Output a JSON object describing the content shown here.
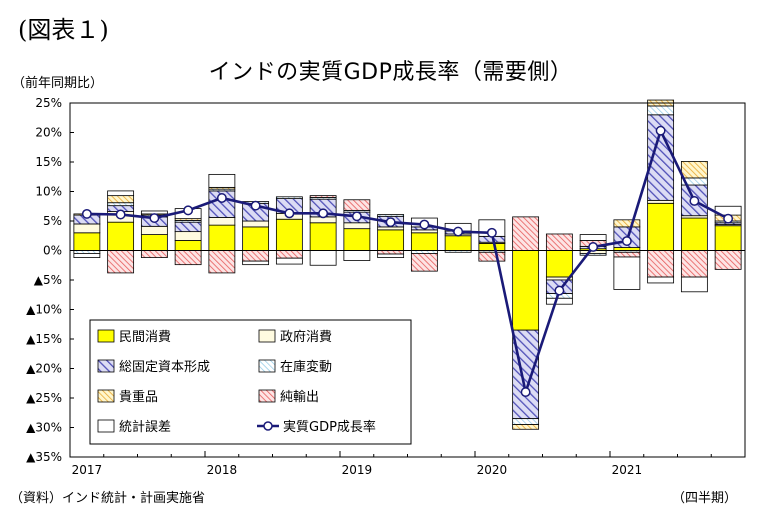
{
  "figure_label": "(図表１)",
  "source": "（資料）インド統計・計画実施省",
  "chart_data": {
    "type": "bar",
    "stacked": true,
    "title": "インドの実質GDP成長率（需要側）",
    "ylabel": "（前年同期比）",
    "xlabel": "（四半期）",
    "ylim": [
      -35,
      25
    ],
    "yticks": [
      25,
      20,
      15,
      10,
      5,
      0,
      -5,
      -10,
      -15,
      -20,
      -25,
      -30,
      -35
    ],
    "ytick_labels": [
      "25%",
      "20%",
      "15%",
      "10%",
      "5%",
      "0%",
      "▲5%",
      "▲10%",
      "▲15%",
      "▲20%",
      "▲25%",
      "▲30%",
      "▲35%"
    ],
    "year_labels": [
      "2017",
      "2018",
      "2019",
      "2020",
      "2021"
    ],
    "year_label_index": [
      0,
      4,
      8,
      12,
      16
    ],
    "quarters": [
      "2017Q1",
      "2017Q2",
      "2017Q3",
      "2017Q4",
      "2018Q1",
      "2018Q2",
      "2018Q3",
      "2018Q4",
      "2019Q1",
      "2019Q2",
      "2019Q3",
      "2019Q4",
      "2020Q1",
      "2020Q2",
      "2020Q3",
      "2020Q4",
      "2021Q1",
      "2021Q2",
      "2021Q3",
      "2021Q4"
    ],
    "grid": false,
    "legend_position": "bottom-left",
    "series": [
      {
        "name": "民間消費",
        "key": "private",
        "values": [
          3,
          4.8,
          2.7,
          1.7,
          4.3,
          4,
          5.3,
          4.7,
          3.7,
          3.5,
          3,
          2.5,
          1.2,
          -13.5,
          -4.5,
          0.3,
          0.5,
          8,
          5.5,
          4.2
        ]
      },
      {
        "name": "政府消費",
        "key": "government",
        "values": [
          1.5,
          1.8,
          1.4,
          1.5,
          1.3,
          1,
          1,
          1,
          1,
          0.5,
          0.5,
          0.3,
          0.2,
          0,
          -0.5,
          -0.5,
          0,
          0.5,
          0.4,
          0.2
        ]
      },
      {
        "name": "総固定資本形成",
        "key": "gfcf",
        "values": [
          1.5,
          1,
          1.6,
          1.6,
          4.5,
          3,
          2.5,
          3,
          1.8,
          1.8,
          0.5,
          0.5,
          1,
          -15,
          -2.3,
          0.4,
          3.5,
          14.5,
          5.2,
          0.3
        ]
      },
      {
        "name": "在庫変動",
        "key": "inventory",
        "values": [
          -0.5,
          0.5,
          0.3,
          0.3,
          0.3,
          0.3,
          0.3,
          0.3,
          0.3,
          0.3,
          -0.5,
          -0.3,
          -0.3,
          -1,
          -0.8,
          -0.3,
          -0.3,
          1.5,
          1.2,
          0.3
        ]
      },
      {
        "name": "貴重品",
        "key": "valuables",
        "values": [
          0.2,
          1.2,
          0.2,
          0.3,
          0.3,
          0,
          0,
          0,
          0,
          0,
          0,
          0,
          0,
          -0.8,
          0,
          0,
          1.2,
          1,
          2.8,
          1
        ]
      },
      {
        "name": "純輸出",
        "key": "netexports",
        "values": [
          0,
          -3.8,
          -1.2,
          -2.4,
          -3.8,
          -1.8,
          -1.3,
          0.3,
          1.8,
          -0.6,
          -3,
          0,
          -1.5,
          5.7,
          2.8,
          1,
          -0.8,
          -4.5,
          -4.5,
          -3.2
        ]
      },
      {
        "name": "統計誤差",
        "key": "discrepancy",
        "values": [
          -0.7,
          0.8,
          0.5,
          1.7,
          2.2,
          -0.6,
          -1,
          -2.5,
          -1.7,
          -0.6,
          1.5,
          1.3,
          2.8,
          0,
          -1,
          1,
          -5.5,
          -1,
          -2.5,
          1.5
        ]
      }
    ],
    "line": {
      "name": "実質GDP成長率",
      "values": [
        6.2,
        6.1,
        5.5,
        6.8,
        8.9,
        7.6,
        6.3,
        6.3,
        5.8,
        4.8,
        4.4,
        3.2,
        3,
        -24,
        -6.8,
        0.6,
        1.6,
        20.3,
        8.4,
        5.4
      ]
    }
  }
}
